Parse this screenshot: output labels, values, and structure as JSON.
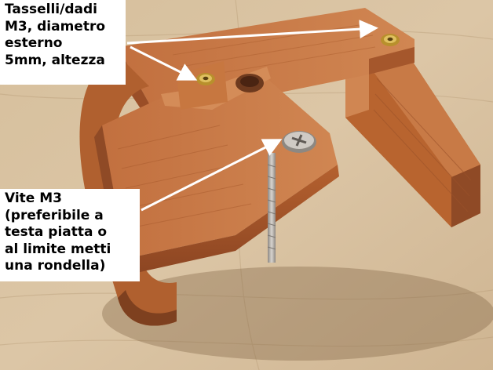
{
  "captions": {
    "inserts": "Tasselli/dadi\nM3, diametro\nesterno\n5mm, altezza",
    "screw": "Vite M3\n(preferibile a\ntesta piatta o\nal limite metti\nuna rondella)"
  },
  "colors": {
    "table": "#d9c4a3",
    "wood_grain": "#c9b08a",
    "print_main": "#c06a3c",
    "print_light": "#d88a57",
    "print_dark": "#8f4a26",
    "print_shadow": "#6e3a1e",
    "brass": "#c9a23a",
    "screw_steel": "#b9b4ad",
    "caption_bg": "#ffffff",
    "arrow": "#ffffff"
  }
}
